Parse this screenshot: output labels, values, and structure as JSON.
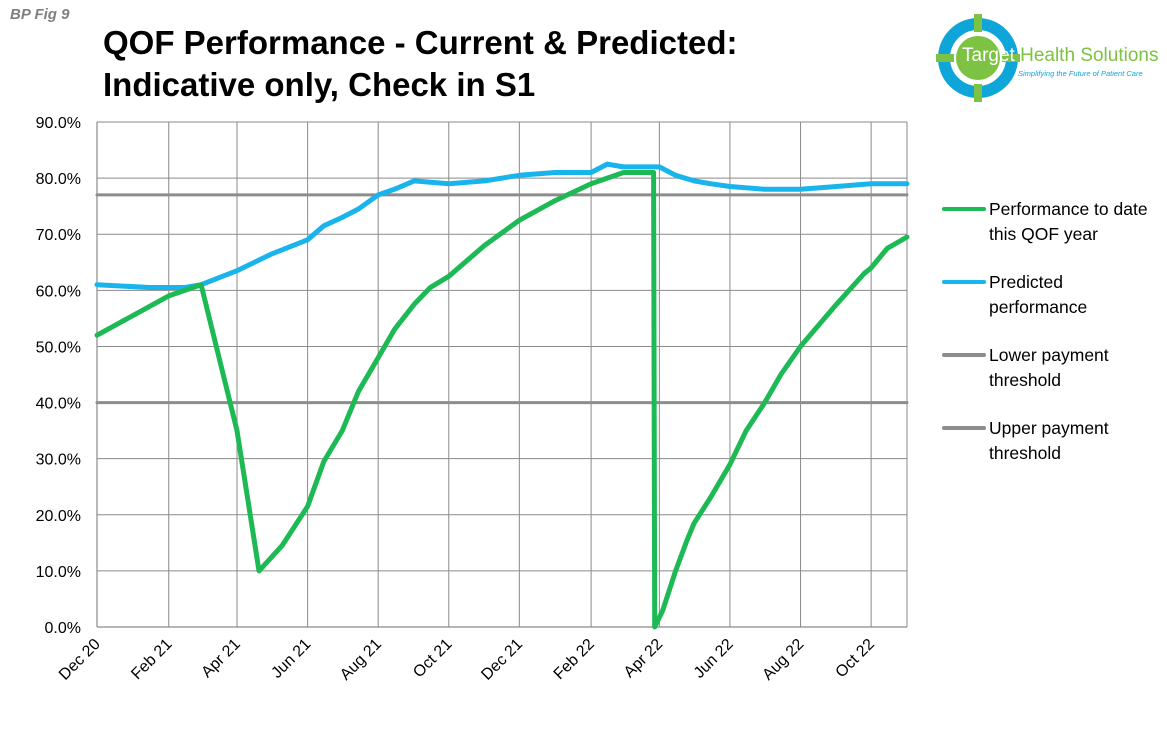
{
  "figure_tag": "BP Fig 9",
  "title_lines": [
    "QOF Performance - Current & Predicted:",
    "Indicative only, Check in S1"
  ],
  "logo": {
    "name_part1": "Tar",
    "name_part2": "get",
    "name_part3": " Health Solutions",
    "tagline": "Simplifying the Future of Patient Care",
    "colors": {
      "green": "#7dc242",
      "blue": "#0ea5d9"
    }
  },
  "legend": [
    {
      "label": "Performance to date this QOF year",
      "color": "#1db954"
    },
    {
      "label": "Predicted performance",
      "color": "#19b4ec"
    },
    {
      "label": "Lower payment threshold",
      "color": "#8c8c8c"
    },
    {
      "label": "Upper payment threshold",
      "color": "#8c8c8c"
    }
  ],
  "chart_data": {
    "type": "line",
    "x_tick_labels": [
      "Dec 20",
      "Feb 21",
      "Apr 21",
      "Jun 21",
      "Aug 21",
      "Oct 21",
      "Dec 21",
      "Feb 22",
      "Apr 22",
      "Jun 22",
      "Aug 22",
      "Oct 22"
    ],
    "y_tick_labels": [
      "0.0%",
      "10.0%",
      "20.0%",
      "30.0%",
      "40.0%",
      "50.0%",
      "60.0%",
      "70.0%",
      "80.0%",
      "90.0%"
    ],
    "ylim": [
      0,
      90
    ],
    "xlim": [
      "2020-12-01",
      "2022-11-01"
    ],
    "grid": true,
    "legend_position": "right",
    "series": [
      {
        "name": "Performance to date this QOF year",
        "color": "#1db954",
        "x": [
          "2020-12-01",
          "2021-01-01",
          "2021-02-01",
          "2021-03-01",
          "2021-04-01",
          "2021-04-20",
          "2021-05-10",
          "2021-06-01",
          "2021-06-15",
          "2021-07-01",
          "2021-07-15",
          "2021-08-01",
          "2021-08-15",
          "2021-09-01",
          "2021-09-15",
          "2021-10-01",
          "2021-11-01",
          "2021-12-01",
          "2022-01-01",
          "2022-02-01",
          "2022-02-15",
          "2022-03-01",
          "2022-03-27",
          "2022-03-28",
          "2022-04-04",
          "2022-04-15",
          "2022-04-25",
          "2022-05-01",
          "2022-05-15",
          "2022-06-01",
          "2022-06-15",
          "2022-07-01",
          "2022-07-15",
          "2022-08-01",
          "2022-09-01",
          "2022-09-25",
          "2022-10-01",
          "2022-10-15",
          "2022-11-01"
        ],
        "values": [
          52.0,
          55.5,
          59.0,
          61.0,
          35.0,
          10.0,
          14.5,
          21.5,
          29.5,
          35.0,
          42.0,
          48.0,
          53.0,
          57.5,
          60.5,
          62.5,
          68.0,
          72.5,
          76.0,
          79.0,
          80.0,
          81.0,
          81.0,
          0.0,
          3.0,
          10.0,
          15.5,
          18.5,
          23.0,
          29.0,
          35.0,
          40.0,
          45.0,
          50.0,
          57.5,
          63.0,
          64.0,
          67.5,
          69.5
        ]
      },
      {
        "name": "Predicted performance",
        "color": "#19b4ec",
        "x": [
          "2020-12-01",
          "2021-01-15",
          "2021-02-15",
          "2021-03-01",
          "2021-04-01",
          "2021-05-01",
          "2021-06-01",
          "2021-06-15",
          "2021-07-01",
          "2021-07-15",
          "2021-08-01",
          "2021-08-15",
          "2021-09-01",
          "2021-10-01",
          "2021-11-01",
          "2021-12-01",
          "2022-01-01",
          "2022-02-01",
          "2022-02-15",
          "2022-03-01",
          "2022-03-25",
          "2022-04-01",
          "2022-04-15",
          "2022-05-01",
          "2022-05-15",
          "2022-06-01",
          "2022-07-01",
          "2022-08-01",
          "2022-09-01",
          "2022-10-01",
          "2022-11-01"
        ],
        "values": [
          61.0,
          60.5,
          60.5,
          61.0,
          63.5,
          66.5,
          69.0,
          71.5,
          73.0,
          74.5,
          77.0,
          78.0,
          79.5,
          79.0,
          79.5,
          80.5,
          81.0,
          81.0,
          82.5,
          82.0,
          82.0,
          82.0,
          80.5,
          79.5,
          79.0,
          78.5,
          78.0,
          78.0,
          78.5,
          79.0,
          79.0
        ]
      },
      {
        "name": "Lower payment threshold",
        "color": "#8c8c8c",
        "x": [
          "2020-12-01",
          "2022-11-01"
        ],
        "values": [
          40.0,
          40.0
        ]
      },
      {
        "name": "Upper payment threshold",
        "color": "#8c8c8c",
        "x": [
          "2020-12-01",
          "2022-11-01"
        ],
        "values": [
          77.0,
          77.0
        ]
      }
    ]
  }
}
